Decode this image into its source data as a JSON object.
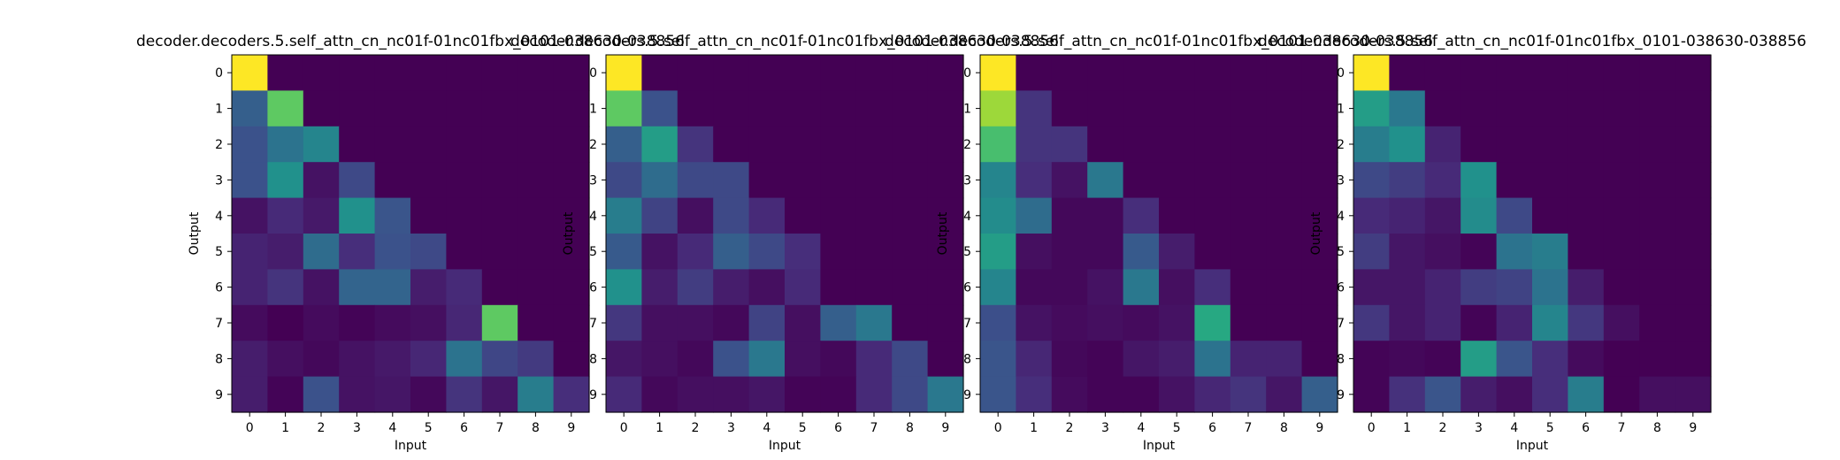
{
  "chart_data": [
    {
      "type": "heatmap",
      "title": "decoder.decoders.5.self_attn_cn_nc01f-01nc01fbx_0101-038630-038856",
      "xlabel": "Input",
      "ylabel": "Output",
      "x_ticks": [
        "0",
        "1",
        "2",
        "3",
        "4",
        "5",
        "6",
        "7",
        "8",
        "9"
      ],
      "y_ticks": [
        "0",
        "1",
        "2",
        "3",
        "4",
        "5",
        "6",
        "7",
        "8",
        "9"
      ],
      "colormap": "viridis",
      "values": [
        [
          1.0,
          0,
          0,
          0,
          0,
          0,
          0,
          0,
          0,
          0
        ],
        [
          0.3,
          0.75,
          0,
          0,
          0,
          0,
          0,
          0,
          0,
          0
        ],
        [
          0.25,
          0.38,
          0.45,
          0,
          0,
          0,
          0,
          0,
          0,
          0
        ],
        [
          0.25,
          0.5,
          0.05,
          0.22,
          0,
          0,
          0,
          0,
          0,
          0
        ],
        [
          0.05,
          0.12,
          0.07,
          0.5,
          0.26,
          0,
          0,
          0,
          0,
          0
        ],
        [
          0.1,
          0.08,
          0.35,
          0.13,
          0.25,
          0.22,
          0,
          0,
          0,
          0
        ],
        [
          0.1,
          0.15,
          0.05,
          0.32,
          0.32,
          0.08,
          0.12,
          0,
          0,
          0
        ],
        [
          0.03,
          0.0,
          0.03,
          0.01,
          0.03,
          0.04,
          0.11,
          0.75,
          0,
          0
        ],
        [
          0.08,
          0.04,
          0.02,
          0.05,
          0.07,
          0.11,
          0.38,
          0.21,
          0.17,
          0
        ],
        [
          0.08,
          0.01,
          0.25,
          0.05,
          0.06,
          0.02,
          0.15,
          0.06,
          0.42,
          0.13
        ]
      ]
    },
    {
      "type": "heatmap",
      "title": "decoder.decoders.5.self_attn_cn_nc01f-01nc01fbx_0101-038630-038856",
      "xlabel": "Input",
      "ylabel": "Output",
      "x_ticks": [
        "0",
        "1",
        "2",
        "3",
        "4",
        "5",
        "6",
        "7",
        "8",
        "9"
      ],
      "y_ticks": [
        "0",
        "1",
        "2",
        "3",
        "4",
        "5",
        "6",
        "7",
        "8",
        "9"
      ],
      "colormap": "viridis",
      "values": [
        [
          1.0,
          0,
          0,
          0,
          0,
          0,
          0,
          0,
          0,
          0
        ],
        [
          0.75,
          0.25,
          0,
          0,
          0,
          0,
          0,
          0,
          0,
          0
        ],
        [
          0.3,
          0.55,
          0.15,
          0,
          0,
          0,
          0,
          0,
          0,
          0
        ],
        [
          0.22,
          0.35,
          0.22,
          0.22,
          0,
          0,
          0,
          0,
          0,
          0
        ],
        [
          0.42,
          0.2,
          0.04,
          0.22,
          0.12,
          0,
          0,
          0,
          0,
          0
        ],
        [
          0.28,
          0.05,
          0.12,
          0.3,
          0.22,
          0.13,
          0,
          0,
          0,
          0
        ],
        [
          0.5,
          0.08,
          0.18,
          0.08,
          0.04,
          0.12,
          0,
          0,
          0,
          0
        ],
        [
          0.16,
          0.04,
          0.04,
          0.02,
          0.2,
          0.04,
          0.3,
          0.4,
          0,
          0
        ],
        [
          0.06,
          0.04,
          0.02,
          0.25,
          0.4,
          0.04,
          0.02,
          0.12,
          0.22,
          0
        ],
        [
          0.12,
          0.02,
          0.04,
          0.04,
          0.06,
          0.01,
          0.01,
          0.12,
          0.22,
          0.4
        ]
      ]
    },
    {
      "type": "heatmap",
      "title": "decoder.decoders.5.self_attn_cn_nc01f-01nc01fbx_0101-038630-038856",
      "xlabel": "Input",
      "ylabel": "Output",
      "x_ticks": [
        "0",
        "1",
        "2",
        "3",
        "4",
        "5",
        "6",
        "7",
        "8",
        "9"
      ],
      "y_ticks": [
        "0",
        "1",
        "2",
        "3",
        "4",
        "5",
        "6",
        "7",
        "8",
        "9"
      ],
      "colormap": "viridis",
      "values": [
        [
          1.0,
          0,
          0,
          0,
          0,
          0,
          0,
          0,
          0,
          0
        ],
        [
          0.85,
          0.15,
          0,
          0,
          0,
          0,
          0,
          0,
          0,
          0
        ],
        [
          0.7,
          0.15,
          0.15,
          0,
          0,
          0,
          0,
          0,
          0,
          0
        ],
        [
          0.45,
          0.13,
          0.05,
          0.4,
          0,
          0,
          0,
          0,
          0,
          0
        ],
        [
          0.48,
          0.35,
          0.02,
          0.02,
          0.13,
          0,
          0,
          0,
          0,
          0
        ],
        [
          0.55,
          0.04,
          0.02,
          0.02,
          0.28,
          0.08,
          0,
          0,
          0,
          0
        ],
        [
          0.45,
          0.02,
          0.02,
          0.05,
          0.4,
          0.04,
          0.13,
          0,
          0,
          0
        ],
        [
          0.24,
          0.05,
          0.03,
          0.04,
          0.03,
          0.05,
          0.6,
          0,
          0,
          0
        ],
        [
          0.26,
          0.11,
          0.02,
          0.01,
          0.06,
          0.08,
          0.38,
          0.1,
          0.1,
          0
        ],
        [
          0.26,
          0.13,
          0.03,
          0.01,
          0.01,
          0.05,
          0.11,
          0.15,
          0.06,
          0.3
        ]
      ]
    },
    {
      "type": "heatmap",
      "title": "decoder.decoders.5.self_attn_cn_nc01f-01nc01fbx_0101-038630-038856",
      "xlabel": "Input",
      "ylabel": "Output",
      "x_ticks": [
        "0",
        "1",
        "2",
        "3",
        "4",
        "5",
        "6",
        "7",
        "8",
        "9"
      ],
      "y_ticks": [
        "0",
        "1",
        "2",
        "3",
        "4",
        "5",
        "6",
        "7",
        "8",
        "9"
      ],
      "colormap": "viridis",
      "values": [
        [
          1.0,
          0,
          0,
          0,
          0,
          0,
          0,
          0,
          0,
          0
        ],
        [
          0.55,
          0.4,
          0,
          0,
          0,
          0,
          0,
          0,
          0,
          0
        ],
        [
          0.42,
          0.5,
          0.1,
          0,
          0,
          0,
          0,
          0,
          0,
          0
        ],
        [
          0.22,
          0.18,
          0.12,
          0.5,
          0,
          0,
          0,
          0,
          0,
          0
        ],
        [
          0.12,
          0.1,
          0.06,
          0.48,
          0.22,
          0,
          0,
          0,
          0,
          0
        ],
        [
          0.18,
          0.06,
          0.04,
          0.01,
          0.38,
          0.42,
          0,
          0,
          0,
          0
        ],
        [
          0.06,
          0.06,
          0.1,
          0.18,
          0.2,
          0.38,
          0.08,
          0,
          0,
          0
        ],
        [
          0.16,
          0.06,
          0.1,
          0.01,
          0.1,
          0.45,
          0.16,
          0.04,
          0,
          0
        ],
        [
          0.01,
          0.02,
          0.01,
          0.55,
          0.26,
          0.13,
          0.03,
          0,
          0,
          0
        ],
        [
          0.01,
          0.14,
          0.26,
          0.08,
          0.04,
          0.13,
          0.42,
          0,
          0.04,
          0.04
        ]
      ]
    }
  ]
}
